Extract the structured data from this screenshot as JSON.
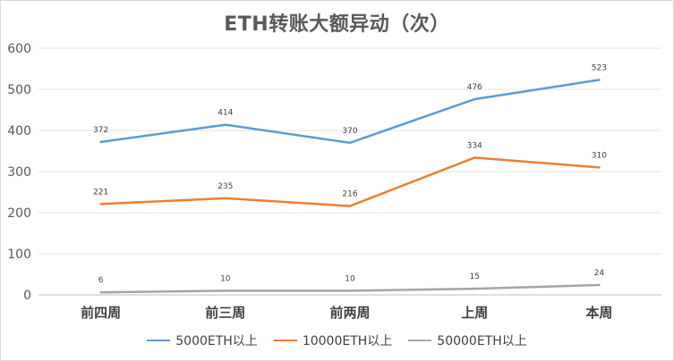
{
  "chart_data": {
    "type": "line",
    "title": "ETH转账大额异动（次）",
    "categories": [
      "前四周",
      "前三周",
      "前两周",
      "上周",
      "本周"
    ],
    "ylim": [
      0,
      600
    ],
    "yticks": [
      0,
      100,
      200,
      300,
      400,
      500,
      600
    ],
    "grid": true,
    "legend_position": "bottom",
    "series": [
      {
        "name": "5000ETH以上",
        "values": [
          372,
          414,
          370,
          476,
          523
        ],
        "color": "#5b9bd5"
      },
      {
        "name": "10000ETH以上",
        "values": [
          221,
          235,
          216,
          334,
          310
        ],
        "color": "#ed7d31"
      },
      {
        "name": "50000ETH以上",
        "values": [
          6,
          10,
          10,
          15,
          24
        ],
        "color": "#a5a5a5"
      }
    ]
  }
}
